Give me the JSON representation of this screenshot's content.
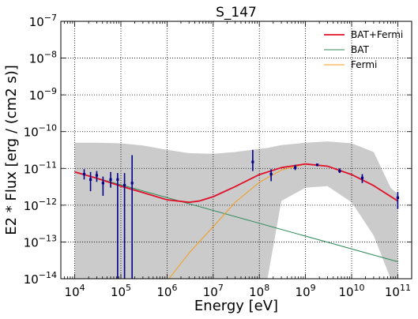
{
  "chart_data": {
    "type": "line",
    "title": "S_147",
    "xlabel": "Energy [eV]",
    "ylabel": "E2 * Flux [erg / (cm2 s)]",
    "x_scale": "log",
    "y_scale": "log",
    "xlim": [
      5000,
      200000000000
    ],
    "ylim": [
      1e-14,
      1e-07
    ],
    "x_ticks": [
      {
        "base": "10",
        "exp": "4",
        "value": 10000
      },
      {
        "base": "10",
        "exp": "5",
        "value": 100000
      },
      {
        "base": "10",
        "exp": "6",
        "value": 1000000
      },
      {
        "base": "10",
        "exp": "7",
        "value": 10000000
      },
      {
        "base": "10",
        "exp": "8",
        "value": 100000000
      },
      {
        "base": "10",
        "exp": "9",
        "value": 1000000000
      },
      {
        "base": "10",
        "exp": "10",
        "value": 10000000000
      },
      {
        "base": "10",
        "exp": "11",
        "value": 100000000000
      }
    ],
    "y_ticks": [
      {
        "base": "10",
        "exp": "−7",
        "value": 1e-07
      },
      {
        "base": "10",
        "exp": "−8",
        "value": 1e-08
      },
      {
        "base": "10",
        "exp": "−9",
        "value": 1e-09
      },
      {
        "base": "10",
        "exp": "−10",
        "value": 1e-10
      },
      {
        "base": "10",
        "exp": "−11",
        "value": 1e-11
      },
      {
        "base": "10",
        "exp": "−12",
        "value": 1e-12
      },
      {
        "base": "10",
        "exp": "−13",
        "value": 1e-13
      },
      {
        "base": "10",
        "exp": "−14",
        "value": 1e-14
      }
    ],
    "grid": true,
    "legend_position": "top-right",
    "series": [
      {
        "name": "BAT+Fermi",
        "color": "#e0102a",
        "x": [
          10000,
          30000,
          100000,
          300000,
          1000000,
          3000000,
          5000000,
          10000000,
          30000000,
          100000000,
          300000000,
          1000000000,
          3000000000,
          10000000000,
          30000000000,
          100000000000
        ],
        "y": [
          8e-12,
          5.4e-12,
          3.3e-12,
          2.2e-12,
          1.4e-12,
          1.2e-12,
          1.3e-12,
          1.7e-12,
          3.2e-12,
          6.8e-12,
          1.05e-11,
          1.32e-11,
          1.15e-11,
          6.8e-12,
          3.4e-12,
          1.3e-12
        ]
      },
      {
        "name": "BAT",
        "color": "#2e8b57",
        "x": [
          10000,
          100000000000
        ],
        "y": [
          8e-12,
          2.9e-14
        ]
      },
      {
        "name": "Fermi",
        "color": "#f39c1f",
        "x": [
          1100000,
          3000000,
          10000000,
          30000000,
          100000000,
          300000000,
          1000000000,
          3000000000,
          10000000000,
          30000000000,
          100000000000
        ],
        "y": [
          1e-14,
          5e-14,
          2.6e-13,
          1.2e-12,
          4.2e-12,
          9e-12,
          1.31e-11,
          1.15e-11,
          6.8e-12,
          3.4e-12,
          1.3e-12
        ]
      }
    ],
    "band": {
      "color": "#cbcbcb",
      "segments": [
        {
          "x": [
            10000,
            30000,
            100000,
            300000,
            1000000,
            3000000,
            10000000,
            30000000,
            100000000,
            150000000
          ],
          "upper": [
            5e-11,
            5e-11,
            4.8e-11,
            4.2e-11,
            3.2e-11,
            2.6e-11,
            2.5e-11,
            2.8e-11,
            3.4e-11,
            3.6e-11
          ],
          "lower": [
            1e-14,
            1e-14,
            1e-14,
            1e-14,
            1e-14,
            1e-14,
            1e-14,
            1e-14,
            1e-14,
            1e-14
          ]
        },
        {
          "x": [
            150000000,
            300000000,
            1000000000,
            3000000000,
            10000000000,
            30000000000,
            70000000000,
            100000000000
          ],
          "upper": [
            3.6e-11,
            4.3e-11,
            5e-11,
            5.4e-11,
            4.8e-11,
            2.8e-11,
            3e-12,
            2e-12
          ],
          "lower": [
            1e-14,
            1.3e-12,
            3e-12,
            3.3e-12,
            1.2e-12,
            1.5e-13,
            1e-14,
            1e-14
          ]
        }
      ]
    },
    "data_points": {
      "color": "#00008b",
      "points": [
        {
          "x": 16000,
          "y": 7e-12,
          "low": 5e-12,
          "high": 9.5e-12
        },
        {
          "x": 22000,
          "y": 5e-12,
          "low": 2.4e-12,
          "high": 8e-12
        },
        {
          "x": 30000,
          "y": 6.5e-12,
          "low": 4.3e-12,
          "high": 8.5e-12
        },
        {
          "x": 41000,
          "y": 4e-12,
          "low": 1.8e-12,
          "high": 6e-12
        },
        {
          "x": 60000,
          "y": 5e-12,
          "low": 3e-12,
          "high": 8e-12
        },
        {
          "x": 85000,
          "y": 5e-12,
          "low": 1e-14,
          "high": 7.5e-12
        },
        {
          "x": 120000,
          "y": 3.5e-12,
          "low": 1e-14,
          "high": 7.5e-12
        },
        {
          "x": 175000,
          "y": 4e-12,
          "low": 1e-14,
          "high": 2.3e-11
        },
        {
          "x": 72000000,
          "y": 1.5e-11,
          "low": 8.5e-12,
          "high": 3.2e-11
        },
        {
          "x": 180000000,
          "y": 7e-12,
          "low": 4.5e-12,
          "high": 9.5e-12
        },
        {
          "x": 600000000,
          "y": 1.05e-11,
          "low": 9e-12,
          "high": 1.25e-11
        },
        {
          "x": 1800000000,
          "y": 1.25e-11,
          "low": 1.15e-11,
          "high": 1.35e-11
        },
        {
          "x": 5500000000,
          "y": 8.5e-12,
          "low": 7.5e-12,
          "high": 1e-11
        },
        {
          "x": 17000000000,
          "y": 5.5e-12,
          "low": 4e-12,
          "high": 7e-12
        },
        {
          "x": 100000000000,
          "y": 1.6e-12,
          "low": 8e-13,
          "high": 2.3e-12
        }
      ]
    }
  }
}
